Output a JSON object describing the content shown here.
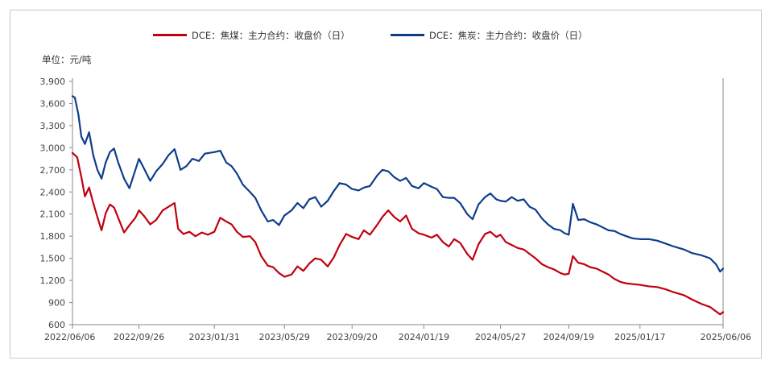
{
  "chart_data": {
    "type": "line",
    "unit_label": "单位：元/吨",
    "ylim": [
      600,
      3900
    ],
    "y_ticks": [
      "3,900",
      "3,600",
      "3,300",
      "3,000",
      "2,700",
      "2,400",
      "2,100",
      "1,800",
      "1,500",
      "1,200",
      "900",
      "600"
    ],
    "x_ticks": [
      "2022/06/06",
      "2022/09/26",
      "2023/01/31",
      "2023/05/29",
      "2023/09/20",
      "2024/01/19",
      "2024/05/27",
      "2024/09/19",
      "2025/01/17",
      "2025/06/06"
    ],
    "x_range": [
      "2022/06/06",
      "2025/06/06"
    ],
    "grid": false,
    "legend_position": "top",
    "series": [
      {
        "name": "DCE：焦煤：主力合约：收盘价（日）",
        "color": "#c0000f",
        "points": [
          [
            "2022/06/06",
            2930
          ],
          [
            "2022/06/14",
            2870
          ],
          [
            "2022/06/21",
            2600
          ],
          [
            "2022/06/27",
            2340
          ],
          [
            "2022/07/04",
            2460
          ],
          [
            "2022/07/11",
            2250
          ],
          [
            "2022/07/18",
            2060
          ],
          [
            "2022/07/25",
            1880
          ],
          [
            "2022/08/01",
            2110
          ],
          [
            "2022/08/08",
            2230
          ],
          [
            "2022/08/15",
            2190
          ],
          [
            "2022/08/22",
            2050
          ],
          [
            "2022/09/01",
            1850
          ],
          [
            "2022/09/10",
            1950
          ],
          [
            "2022/09/20",
            2050
          ],
          [
            "2022/09/26",
            2150
          ],
          [
            "2022/10/05",
            2070
          ],
          [
            "2022/10/15",
            1960
          ],
          [
            "2022/10/25",
            2020
          ],
          [
            "2022/11/05",
            2150
          ],
          [
            "2022/11/15",
            2200
          ],
          [
            "2022/11/25",
            2250
          ],
          [
            "2022/12/01",
            1900
          ],
          [
            "2022/12/10",
            1830
          ],
          [
            "2022/12/20",
            1860
          ],
          [
            "2022/12/30",
            1800
          ],
          [
            "2023/01/10",
            1850
          ],
          [
            "2023/01/20",
            1820
          ],
          [
            "2023/01/31",
            1860
          ],
          [
            "2023/02/10",
            2050
          ],
          [
            "2023/02/20",
            2000
          ],
          [
            "2023/03/01",
            1960
          ],
          [
            "2023/03/10",
            1860
          ],
          [
            "2023/03/20",
            1790
          ],
          [
            "2023/04/01",
            1800
          ],
          [
            "2023/04/10",
            1720
          ],
          [
            "2023/04/20",
            1530
          ],
          [
            "2023/05/01",
            1400
          ],
          [
            "2023/05/10",
            1380
          ],
          [
            "2023/05/20",
            1300
          ],
          [
            "2023/05/29",
            1250
          ],
          [
            "2023/06/10",
            1280
          ],
          [
            "2023/06/20",
            1390
          ],
          [
            "2023/06/30",
            1330
          ],
          [
            "2023/07/10",
            1430
          ],
          [
            "2023/07/20",
            1500
          ],
          [
            "2023/07/30",
            1480
          ],
          [
            "2023/08/10",
            1390
          ],
          [
            "2023/08/20",
            1510
          ],
          [
            "2023/08/30",
            1680
          ],
          [
            "2023/09/10",
            1830
          ],
          [
            "2023/09/20",
            1790
          ],
          [
            "2023/10/01",
            1760
          ],
          [
            "2023/10/10",
            1880
          ],
          [
            "2023/10/20",
            1820
          ],
          [
            "2023/11/01",
            1950
          ],
          [
            "2023/11/10",
            2060
          ],
          [
            "2023/11/20",
            2150
          ],
          [
            "2023/11/30",
            2060
          ],
          [
            "2023/12/10",
            2000
          ],
          [
            "2023/12/20",
            2080
          ],
          [
            "2023/12/30",
            1900
          ],
          [
            "2024/01/10",
            1840
          ],
          [
            "2024/01/19",
            1820
          ],
          [
            "2024/02/01",
            1780
          ],
          [
            "2024/02/10",
            1820
          ],
          [
            "2024/02/20",
            1720
          ],
          [
            "2024/03/01",
            1660
          ],
          [
            "2024/03/10",
            1760
          ],
          [
            "2024/03/20",
            1710
          ],
          [
            "2024/04/01",
            1560
          ],
          [
            "2024/04/10",
            1480
          ],
          [
            "2024/04/20",
            1690
          ],
          [
            "2024/05/01",
            1830
          ],
          [
            "2024/05/10",
            1860
          ],
          [
            "2024/05/20",
            1790
          ],
          [
            "2024/05/27",
            1820
          ],
          [
            "2024/06/05",
            1720
          ],
          [
            "2024/06/15",
            1680
          ],
          [
            "2024/06/25",
            1640
          ],
          [
            "2024/07/05",
            1620
          ],
          [
            "2024/07/15",
            1560
          ],
          [
            "2024/07/25",
            1500
          ],
          [
            "2024/08/05",
            1420
          ],
          [
            "2024/08/15",
            1380
          ],
          [
            "2024/08/25",
            1350
          ],
          [
            "2024/09/05",
            1300
          ],
          [
            "2024/09/12",
            1280
          ],
          [
            "2024/09/19",
            1290
          ],
          [
            "2024/09/26",
            1530
          ],
          [
            "2024/10/05",
            1440
          ],
          [
            "2024/10/15",
            1420
          ],
          [
            "2024/10/25",
            1380
          ],
          [
            "2024/11/05",
            1360
          ],
          [
            "2024/11/15",
            1320
          ],
          [
            "2024/11/25",
            1280
          ],
          [
            "2024/12/05",
            1220
          ],
          [
            "2024/12/15",
            1180
          ],
          [
            "2024/12/25",
            1160
          ],
          [
            "2025/01/05",
            1150
          ],
          [
            "2025/01/17",
            1140
          ],
          [
            "2025/02/01",
            1120
          ],
          [
            "2025/02/15",
            1110
          ],
          [
            "2025/03/01",
            1080
          ],
          [
            "2025/03/15",
            1040
          ],
          [
            "2025/04/01",
            1000
          ],
          [
            "2025/04/15",
            940
          ],
          [
            "2025/05/01",
            880
          ],
          [
            "2025/05/15",
            840
          ],
          [
            "2025/05/25",
            780
          ],
          [
            "2025/06/01",
            740
          ],
          [
            "2025/06/06",
            770
          ]
        ]
      },
      {
        "name": "DCE：焦炭：主力合约：收盘价（日）",
        "color": "#0e3d8c",
        "points": [
          [
            "2022/06/06",
            3700
          ],
          [
            "2022/06/10",
            3680
          ],
          [
            "2022/06/16",
            3450
          ],
          [
            "2022/06/21",
            3150
          ],
          [
            "2022/06/27",
            3050
          ],
          [
            "2022/07/04",
            3210
          ],
          [
            "2022/07/11",
            2900
          ],
          [
            "2022/07/18",
            2700
          ],
          [
            "2022/07/25",
            2580
          ],
          [
            "2022/08/01",
            2800
          ],
          [
            "2022/08/08",
            2940
          ],
          [
            "2022/08/15",
            2990
          ],
          [
            "2022/08/22",
            2800
          ],
          [
            "2022/09/01",
            2580
          ],
          [
            "2022/09/10",
            2450
          ],
          [
            "2022/09/20",
            2700
          ],
          [
            "2022/09/26",
            2850
          ],
          [
            "2022/10/05",
            2710
          ],
          [
            "2022/10/15",
            2550
          ],
          [
            "2022/10/25",
            2680
          ],
          [
            "2022/11/05",
            2780
          ],
          [
            "2022/11/15",
            2900
          ],
          [
            "2022/11/25",
            2980
          ],
          [
            "2022/12/05",
            2700
          ],
          [
            "2022/12/15",
            2750
          ],
          [
            "2022/12/25",
            2850
          ],
          [
            "2023/01/05",
            2820
          ],
          [
            "2023/01/15",
            2920
          ],
          [
            "2023/01/31",
            2940
          ],
          [
            "2023/02/10",
            2960
          ],
          [
            "2023/02/20",
            2800
          ],
          [
            "2023/03/01",
            2750
          ],
          [
            "2023/03/10",
            2650
          ],
          [
            "2023/03/20",
            2500
          ],
          [
            "2023/04/01",
            2400
          ],
          [
            "2023/04/10",
            2320
          ],
          [
            "2023/04/20",
            2150
          ],
          [
            "2023/05/01",
            2000
          ],
          [
            "2023/05/10",
            2020
          ],
          [
            "2023/05/20",
            1950
          ],
          [
            "2023/05/29",
            2080
          ],
          [
            "2023/06/10",
            2150
          ],
          [
            "2023/06/20",
            2250
          ],
          [
            "2023/06/30",
            2180
          ],
          [
            "2023/07/10",
            2300
          ],
          [
            "2023/07/20",
            2330
          ],
          [
            "2023/07/30",
            2200
          ],
          [
            "2023/08/10",
            2280
          ],
          [
            "2023/08/20",
            2410
          ],
          [
            "2023/08/30",
            2520
          ],
          [
            "2023/09/10",
            2500
          ],
          [
            "2023/09/20",
            2440
          ],
          [
            "2023/10/01",
            2420
          ],
          [
            "2023/10/10",
            2460
          ],
          [
            "2023/10/20",
            2480
          ],
          [
            "2023/11/01",
            2620
          ],
          [
            "2023/11/10",
            2700
          ],
          [
            "2023/11/20",
            2680
          ],
          [
            "2023/11/30",
            2600
          ],
          [
            "2023/12/10",
            2550
          ],
          [
            "2023/12/20",
            2590
          ],
          [
            "2023/12/30",
            2480
          ],
          [
            "2024/01/10",
            2450
          ],
          [
            "2024/01/19",
            2520
          ],
          [
            "2024/02/01",
            2470
          ],
          [
            "2024/02/10",
            2440
          ],
          [
            "2024/02/20",
            2330
          ],
          [
            "2024/03/01",
            2320
          ],
          [
            "2024/03/10",
            2320
          ],
          [
            "2024/03/20",
            2250
          ],
          [
            "2024/04/01",
            2100
          ],
          [
            "2024/04/10",
            2030
          ],
          [
            "2024/04/20",
            2230
          ],
          [
            "2024/05/01",
            2330
          ],
          [
            "2024/05/10",
            2380
          ],
          [
            "2024/05/20",
            2300
          ],
          [
            "2024/05/27",
            2280
          ],
          [
            "2024/06/05",
            2270
          ],
          [
            "2024/06/15",
            2330
          ],
          [
            "2024/06/25",
            2280
          ],
          [
            "2024/07/05",
            2300
          ],
          [
            "2024/07/15",
            2200
          ],
          [
            "2024/07/25",
            2160
          ],
          [
            "2024/08/05",
            2040
          ],
          [
            "2024/08/15",
            1960
          ],
          [
            "2024/08/25",
            1900
          ],
          [
            "2024/09/05",
            1880
          ],
          [
            "2024/09/12",
            1840
          ],
          [
            "2024/09/19",
            1820
          ],
          [
            "2024/09/26",
            2240
          ],
          [
            "2024/10/05",
            2020
          ],
          [
            "2024/10/15",
            2030
          ],
          [
            "2024/10/25",
            1990
          ],
          [
            "2024/11/05",
            1960
          ],
          [
            "2024/11/15",
            1920
          ],
          [
            "2024/11/25",
            1880
          ],
          [
            "2024/12/05",
            1870
          ],
          [
            "2024/12/15",
            1830
          ],
          [
            "2024/12/25",
            1800
          ],
          [
            "2025/01/05",
            1770
          ],
          [
            "2025/01/17",
            1760
          ],
          [
            "2025/02/01",
            1760
          ],
          [
            "2025/02/15",
            1740
          ],
          [
            "2025/03/01",
            1700
          ],
          [
            "2025/03/15",
            1660
          ],
          [
            "2025/04/01",
            1620
          ],
          [
            "2025/04/15",
            1570
          ],
          [
            "2025/05/01",
            1540
          ],
          [
            "2025/05/15",
            1500
          ],
          [
            "2025/05/25",
            1420
          ],
          [
            "2025/06/01",
            1320
          ],
          [
            "2025/06/06",
            1360
          ]
        ]
      }
    ]
  }
}
